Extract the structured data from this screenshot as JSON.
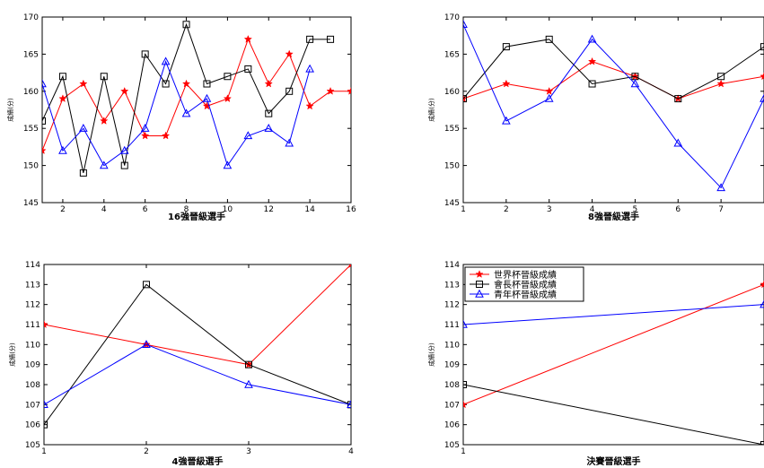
{
  "series_styles": {
    "世界杯晉級成績": {
      "color": "#ff0000",
      "marker": "star"
    },
    "會長杯晉級成績": {
      "color": "#000000",
      "marker": "square"
    },
    "青年杯晉級成績": {
      "color": "#0000ff",
      "marker": "triangle"
    }
  },
  "chart_data": [
    {
      "type": "line",
      "xlabel": "16強晉級選手",
      "ylabel": "成績(分)",
      "xlim": [
        1,
        16
      ],
      "ylim": [
        145,
        170
      ],
      "xticks": [
        2,
        4,
        6,
        8,
        10,
        12,
        14,
        16
      ],
      "yticks": [
        145,
        150,
        155,
        160,
        165,
        170
      ],
      "grid": false,
      "series": [
        {
          "name": "世界杯晉級成績",
          "x": [
            1,
            2,
            3,
            4,
            5,
            6,
            7,
            8,
            9,
            10,
            11,
            12,
            13,
            14,
            15,
            16
          ],
          "values": [
            152,
            159,
            161,
            156,
            160,
            154,
            154,
            161,
            158,
            159,
            167,
            161,
            165,
            158,
            160,
            160
          ]
        },
        {
          "name": "會長杯晉級成績",
          "x": [
            1,
            2,
            3,
            4,
            5,
            6,
            7,
            8,
            9,
            10,
            11,
            12,
            13,
            14,
            15
          ],
          "values": [
            156,
            162,
            149,
            162,
            150,
            165,
            161,
            169,
            161,
            162,
            163,
            157,
            160,
            167,
            167
          ]
        },
        {
          "name": "青年杯晉級成績",
          "x": [
            1,
            2,
            3,
            4,
            5,
            6,
            7,
            8,
            9,
            10,
            11,
            12,
            13,
            14
          ],
          "values": [
            161,
            152,
            155,
            150,
            152,
            155,
            164,
            157,
            159,
            150,
            154,
            155,
            153,
            163
          ]
        }
      ]
    },
    {
      "type": "line",
      "xlabel": "8強晉級選手",
      "ylabel": "成績(分)",
      "xlim": [
        1,
        8
      ],
      "ylim": [
        145,
        170
      ],
      "xticks": [
        1,
        2,
        3,
        4,
        5,
        6,
        7
      ],
      "yticks": [
        145,
        150,
        155,
        160,
        165,
        170
      ],
      "grid": false,
      "series": [
        {
          "name": "世界杯晉級成績",
          "x": [
            1,
            2,
            3,
            4,
            5,
            6,
            7,
            8
          ],
          "values": [
            159,
            161,
            160,
            164,
            162,
            159,
            161,
            162
          ]
        },
        {
          "name": "會長杯晉級成績",
          "x": [
            1,
            2,
            3,
            4,
            5,
            6,
            7,
            8
          ],
          "values": [
            159,
            166,
            167,
            161,
            162,
            159,
            162,
            166
          ]
        },
        {
          "name": "青年杯晉級成績",
          "x": [
            1,
            2,
            3,
            4,
            5,
            6,
            7,
            8
          ],
          "values": [
            169,
            156,
            159,
            167,
            161,
            153,
            147,
            159
          ]
        }
      ]
    },
    {
      "type": "line",
      "xlabel": "4強晉級選手",
      "ylabel": "成績(分)",
      "xlim": [
        1,
        4
      ],
      "ylim": [
        105,
        114
      ],
      "xticks": [
        1,
        2,
        3,
        4
      ],
      "yticks": [
        105,
        106,
        107,
        108,
        109,
        110,
        111,
        112,
        113,
        114
      ],
      "grid": false,
      "series": [
        {
          "name": "世界杯晉級成績",
          "x": [
            1,
            2,
            3,
            4
          ],
          "values": [
            111,
            110,
            109,
            114
          ]
        },
        {
          "name": "會長杯晉級成績",
          "x": [
            1,
            2,
            3,
            4
          ],
          "values": [
            106,
            113,
            109,
            107
          ]
        },
        {
          "name": "青年杯晉級成績",
          "x": [
            1,
            2,
            3,
            4
          ],
          "values": [
            107,
            110,
            108,
            107
          ]
        }
      ]
    },
    {
      "type": "line",
      "xlabel": "決賽晉級選手",
      "ylabel": "成績(分)",
      "xlim": [
        1,
        2
      ],
      "ylim": [
        105,
        114
      ],
      "xticks": [
        1
      ],
      "yticks": [
        105,
        106,
        107,
        108,
        109,
        110,
        111,
        112,
        113,
        114
      ],
      "grid": false,
      "legend": {
        "position": "top-left",
        "entries": [
          "世界杯晉級成績",
          "會長杯晉級成績",
          "青年杯晉級成績"
        ]
      },
      "series": [
        {
          "name": "世界杯晉級成績",
          "x": [
            1,
            2
          ],
          "values": [
            107,
            113
          ]
        },
        {
          "name": "會長杯晉級成績",
          "x": [
            1,
            2
          ],
          "values": [
            108,
            105
          ]
        },
        {
          "name": "青年杯晉級成績",
          "x": [
            1,
            2
          ],
          "values": [
            111,
            112
          ]
        }
      ]
    }
  ]
}
